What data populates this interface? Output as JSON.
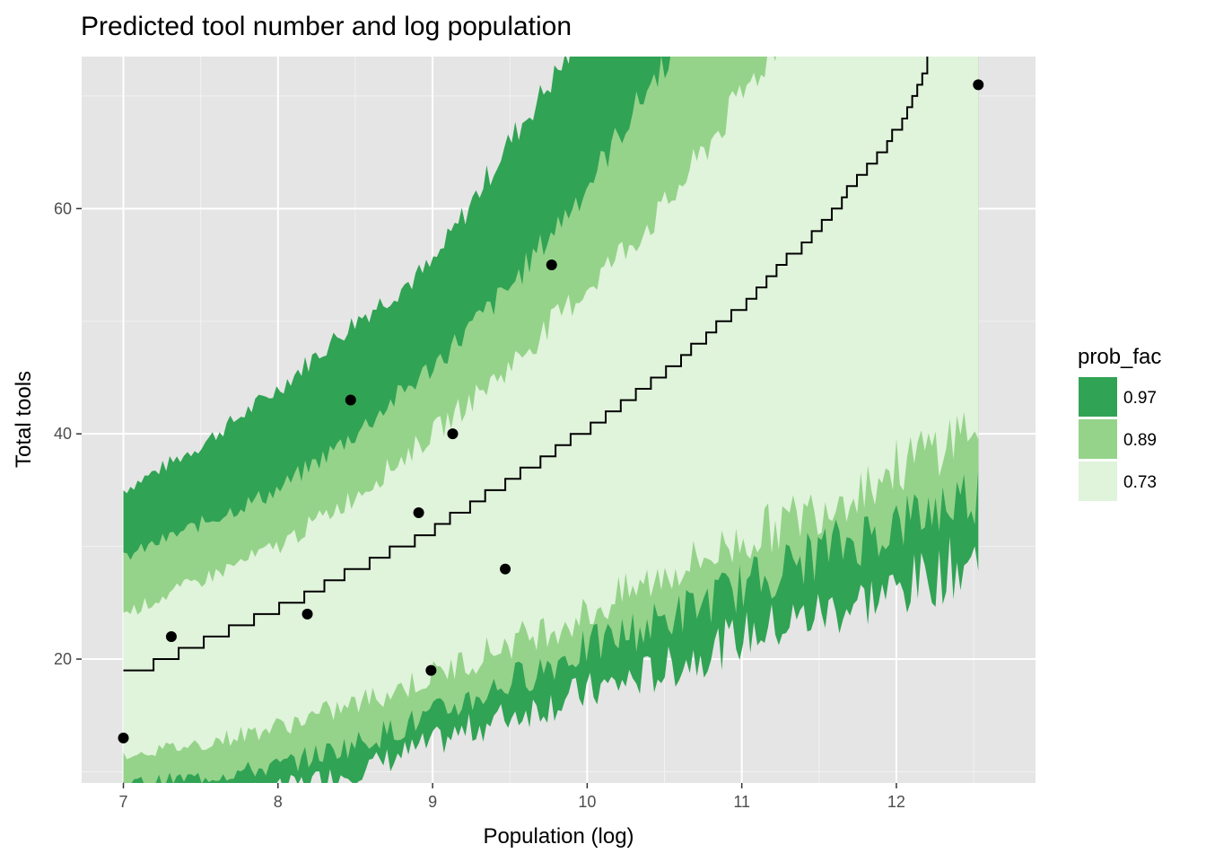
{
  "chart_data": {
    "type": "area",
    "title": "Predicted tool number and log population",
    "xlabel": "Population (log)",
    "ylabel": "Total tools",
    "xlim": [
      6.73,
      12.9
    ],
    "ylim": [
      9.0,
      73.5
    ],
    "xticks": [
      7,
      8,
      9,
      10,
      11,
      12
    ],
    "xtick_labels": [
      "7",
      "8",
      "9",
      "10",
      "11",
      "12"
    ],
    "yticks": [
      20,
      40,
      60
    ],
    "ytick_labels": [
      "20",
      "40",
      "60"
    ],
    "grid": true,
    "legend": {
      "title": "prob_fac",
      "position": "right",
      "entries": [
        {
          "label": "0.97",
          "color": "#31a354"
        },
        {
          "label": "0.89",
          "color": "#95d38a"
        },
        {
          "label": "0.73",
          "color": "#e0f3db"
        }
      ]
    },
    "bands": [
      {
        "prob": "0.97",
        "color": "#31a354",
        "x": [
          7.0,
          7.5,
          8.0,
          8.5,
          9.0,
          9.5,
          10.0,
          10.5,
          11.0,
          11.5,
          12.0,
          12.53
        ],
        "lower": [
          7.5,
          7.5,
          8.5,
          10.0,
          12.5,
          15.0,
          17.0,
          19.0,
          22.0,
          24.0,
          26.0,
          29.0
        ],
        "upper": [
          35.0,
          39.0,
          44.0,
          50.0,
          55.0,
          66.0,
          76.0,
          85.0,
          95.0,
          110.0,
          125.0,
          140.0
        ]
      },
      {
        "prob": "0.89",
        "color": "#95d38a",
        "x": [
          7.0,
          7.5,
          8.0,
          8.5,
          9.0,
          9.5,
          10.0,
          10.5,
          11.0,
          11.5,
          12.0,
          12.53
        ],
        "lower": [
          9.0,
          9.5,
          10.5,
          12.5,
          15.0,
          18.0,
          21.0,
          23.5,
          26.5,
          29.5,
          32.0,
          35.0
        ],
        "upper": [
          29.0,
          32.0,
          35.0,
          40.0,
          46.0,
          53.0,
          62.0,
          73.0,
          82.0,
          95.0,
          108.0,
          122.0
        ]
      },
      {
        "prob": "0.73",
        "color": "#e0f3db",
        "x": [
          7.0,
          7.5,
          8.0,
          8.5,
          9.0,
          9.5,
          10.0,
          10.5,
          11.0,
          11.5,
          12.0,
          12.53
        ],
        "lower": [
          11.5,
          12.5,
          14.0,
          16.0,
          18.5,
          21.5,
          24.0,
          27.5,
          30.5,
          33.5,
          37.0,
          41.0
        ],
        "upper": [
          24.0,
          27.0,
          30.0,
          34.5,
          40.0,
          46.0,
          53.0,
          60.0,
          70.0,
          80.0,
          92.0,
          105.0
        ]
      }
    ],
    "mean_line": {
      "x": [
        7.0,
        7.5,
        8.0,
        8.5,
        9.0,
        9.5,
        10.0,
        10.5,
        11.0,
        11.5,
        12.0,
        12.2
      ],
      "y": [
        18.5,
        21.5,
        24.5,
        28.0,
        31.5,
        36.0,
        40.5,
        45.5,
        51.5,
        58.5,
        67.0,
        73.5
      ]
    },
    "points": [
      {
        "x": 7.0,
        "y": 13
      },
      {
        "x": 7.31,
        "y": 22
      },
      {
        "x": 8.19,
        "y": 24
      },
      {
        "x": 8.47,
        "y": 43
      },
      {
        "x": 8.91,
        "y": 33
      },
      {
        "x": 8.99,
        "y": 19
      },
      {
        "x": 9.13,
        "y": 40
      },
      {
        "x": 9.47,
        "y": 28
      },
      {
        "x": 9.77,
        "y": 55
      },
      {
        "x": 12.53,
        "y": 71
      }
    ]
  }
}
